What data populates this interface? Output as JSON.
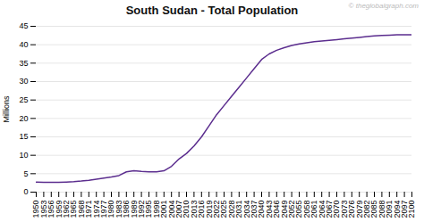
{
  "chart_data": {
    "type": "line",
    "title": "South Sudan - Total Population",
    "ylabel": "Millions",
    "annotations": [
      "© theglobalgraph.com"
    ],
    "color": "#5b2d8e",
    "grid": true,
    "x": [
      1950,
      1953,
      1956,
      1959,
      1962,
      1965,
      1968,
      1971,
      1974,
      1977,
      1980,
      1983,
      1986,
      1989,
      1992,
      1995,
      1998,
      2001,
      2004,
      2007,
      2010,
      2013,
      2016,
      2019,
      2022,
      2025,
      2028,
      2031,
      2034,
      2037,
      2040,
      2043,
      2046,
      2049,
      2052,
      2055,
      2058,
      2061,
      2064,
      2067,
      2070,
      2073,
      2076,
      2079,
      2082,
      2085,
      2088,
      2091,
      2094,
      2097,
      2100
    ],
    "values": [
      2.7,
      2.65,
      2.65,
      2.65,
      2.75,
      2.85,
      3.0,
      3.2,
      3.5,
      3.8,
      4.1,
      4.5,
      5.5,
      5.8,
      5.6,
      5.5,
      5.5,
      5.8,
      7.0,
      9.0,
      10.5,
      12.5,
      15.0,
      18.0,
      21.0,
      23.5,
      26.0,
      28.5,
      31.0,
      33.5,
      36.0,
      37.5,
      38.5,
      39.2,
      39.8,
      40.2,
      40.5,
      40.8,
      41.0,
      41.2,
      41.4,
      41.6,
      41.8,
      42.0,
      42.2,
      42.4,
      42.5,
      42.6,
      42.7,
      42.7,
      42.7
    ],
    "xlim": [
      1950,
      2100
    ],
    "xticks": [
      1950,
      1953,
      1956,
      1959,
      1962,
      1965,
      1968,
      1971,
      1974,
      1977,
      1980,
      1983,
      1986,
      1989,
      1992,
      1995,
      1998,
      2001,
      2004,
      2007,
      2010,
      2013,
      2016,
      2019,
      2022,
      2025,
      2028,
      2031,
      2034,
      2037,
      2040,
      2043,
      2046,
      2049,
      2052,
      2055,
      2058,
      2061,
      2064,
      2067,
      2070,
      2073,
      2076,
      2079,
      2082,
      2085,
      2088,
      2091,
      2094,
      2097,
      2100
    ],
    "ylim": [
      0,
      45
    ],
    "yticks": [
      0,
      5,
      10,
      15,
      20,
      25,
      30,
      35,
      40,
      45
    ]
  }
}
